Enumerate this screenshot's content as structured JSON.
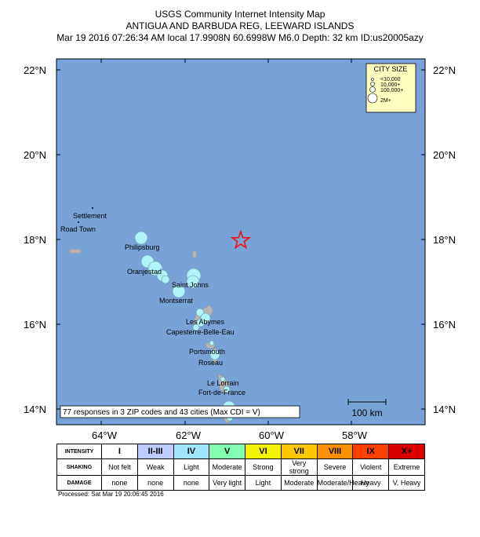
{
  "header": {
    "line1": "USGS Community Internet Intensity Map",
    "line2": "ANTIGUA AND BARBUDA REG, LEEWARD ISLANDS",
    "line3": "Mar 19 2016 07:26:34 AM local 17.9908N 60.6998W M6.0 Depth: 32 km ID:us20005azy"
  },
  "axes": {
    "lat_ticks": [
      "22°N",
      "20°N",
      "18°N",
      "16°N",
      "14°N"
    ],
    "lon_ticks": [
      "64°W",
      "62°W",
      "60°W",
      "58°W"
    ]
  },
  "colors": {
    "ocean": "#79a2d9",
    "land": "#b4b4b4",
    "epicenter": "#ee1111",
    "circle": "#aef4f8"
  },
  "city_labels": [
    "Settlement",
    "Road Town",
    "Philipsburg",
    "Oranjestad",
    "Saint Johns",
    "Montserrat",
    "Les Abymes",
    "Capesterre-Belle-Eau",
    "Portsmouth",
    "Roseau",
    "Le Lorrain",
    "Fort-de-France"
  ],
  "city_size_legend": {
    "title": "CITY SIZE",
    "entries": [
      "<10,000",
      "10,000+",
      "100,000+",
      "2M+"
    ]
  },
  "responses_note": "77 responses in 3 ZIP codes and 43 cities (Max CDI = V)",
  "scale_bar": "100 km",
  "intensity_legend": {
    "row_labels": [
      "INTENSITY",
      "SHAKING",
      "DAMAGE"
    ],
    "levels": [
      {
        "intensity": "I",
        "shaking": "Not felt",
        "damage": "none",
        "color": "#ffffff"
      },
      {
        "intensity": "II-III",
        "shaking": "Weak",
        "damage": "none",
        "color": "#bfccff"
      },
      {
        "intensity": "IV",
        "shaking": "Light",
        "damage": "none",
        "color": "#a0e6ff"
      },
      {
        "intensity": "V",
        "shaking": "Moderate",
        "damage": "Very light",
        "color": "#80ffb0"
      },
      {
        "intensity": "VI",
        "shaking": "Strong",
        "damage": "Light",
        "color": "#f4f400"
      },
      {
        "intensity": "VII",
        "shaking": "Very strong",
        "damage": "Moderate",
        "color": "#ffc800"
      },
      {
        "intensity": "VIII",
        "shaking": "Severe",
        "damage": "Moderate/Heavy",
        "color": "#ff9100"
      },
      {
        "intensity": "IX",
        "shaking": "Violent",
        "damage": "Heavy",
        "color": "#ff4000"
      },
      {
        "intensity": "X+",
        "shaking": "Extreme",
        "damage": "V. Heavy",
        "color": "#dd0000"
      }
    ]
  },
  "processed": "Processed: Sat Mar 19 20:06:45 2016"
}
